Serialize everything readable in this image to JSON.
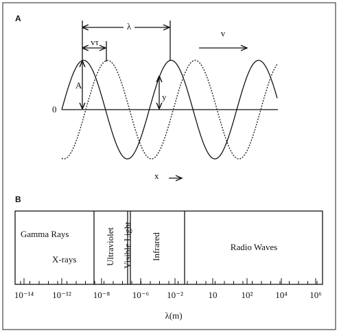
{
  "panel_a": {
    "label": "A",
    "wavelength": "λ",
    "shift": "vτ",
    "velocity": "v",
    "amplitude": "A",
    "displacement": "y",
    "origin": "0",
    "x_axis": "x"
  },
  "panel_b": {
    "label": "B",
    "regions": [
      "Gamma Rays",
      "X-rays",
      "Ultraviolet",
      "Visible Light",
      "Infrared",
      "Radio Waves"
    ],
    "tick_labels": [
      "10⁻¹⁴",
      "10⁻¹²",
      "10⁻⁸",
      "10⁻⁶",
      "10⁻²",
      "10",
      "10²",
      "10⁴",
      "10⁶"
    ],
    "axis_label": "λ(m)"
  }
}
